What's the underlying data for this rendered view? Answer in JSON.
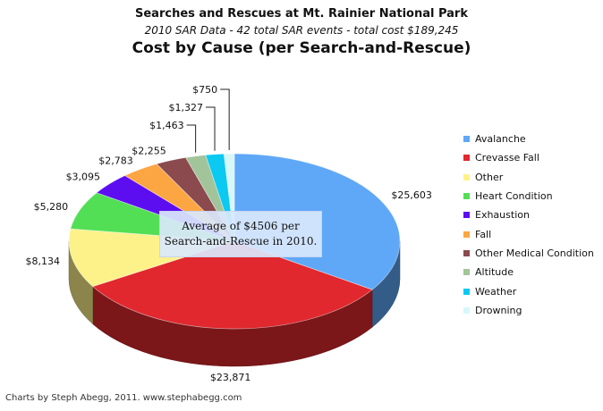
{
  "chart_data": {
    "type": "pie",
    "title": "Searches and Rescues at Mt. Rainier National Park",
    "subtitle": "2010 SAR Data - 42 total SAR events - total cost $189,245",
    "heading": "Cost by Cause (per Search-and-Rescue)",
    "categories": [
      "Avalanche",
      "Crevasse Fall",
      "Other",
      "Heart Condition",
      "Exhaustion",
      "Fall",
      "Other Medical Condition",
      "Altitude",
      "Weather",
      "Drowning"
    ],
    "values": [
      25603,
      23871,
      8134,
      5280,
      3095,
      2783,
      2255,
      1463,
      1327,
      750
    ],
    "value_labels": [
      "$25,603",
      "$23,871",
      "$8,134",
      "$5,280",
      "$3,095",
      "$2,783",
      "$2,255",
      "$1,463",
      "$1,327",
      "$750"
    ],
    "colors": [
      "#5fa8f8",
      "#e0282e",
      "#fdf28a",
      "#53df55",
      "#5c0ef0",
      "#fba643",
      "#8a4a4e",
      "#a2c49a",
      "#0cc9f2",
      "#d8f7f9"
    ],
    "annotation": [
      "Average of $4506 per",
      "Search-and-Rescue in 2010."
    ],
    "legend_position": "right",
    "grid": false
  },
  "credit": "Charts by Steph Abegg, 2011. www.stephabegg.com"
}
